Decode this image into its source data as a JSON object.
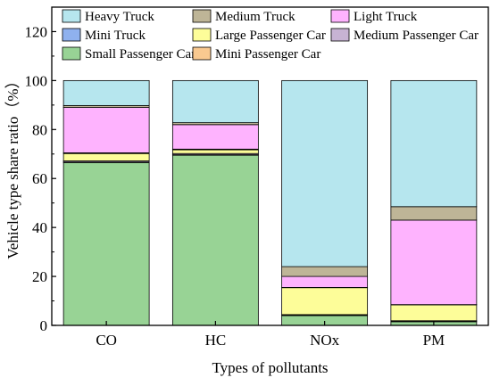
{
  "chart_data": {
    "type": "bar",
    "stacked": true,
    "categories": [
      "CO",
      "HC",
      "NOx",
      "PM"
    ],
    "xlabel": "Types of pollutants",
    "ylabel": "Vehicle type share ratio（%）",
    "ylim": [
      0,
      130
    ],
    "yticks": [
      0,
      20,
      40,
      60,
      80,
      100,
      120
    ],
    "grid": false,
    "legend_position": "top",
    "stack_order": [
      "Small Passenger Car",
      "Mini Passenger Car",
      "Medium Passenger Car",
      "Large Passenger Car",
      "Mini Truck",
      "Light Truck",
      "Medium Truck",
      "Heavy Truck"
    ],
    "legend_order": [
      "Heavy Truck",
      "Medium Truck",
      "Light Truck",
      "Mini Truck",
      "Large Passenger Car",
      "Medium Passenger Car",
      "Small Passenger Car",
      "Mini Passenger Car"
    ],
    "series": [
      {
        "name": "Small Passenger Car",
        "color": "#98d395",
        "values": [
          66.5,
          69.5,
          4.0,
          1.5
        ]
      },
      {
        "name": "Mini Passenger Car",
        "color": "#f9c990",
        "values": [
          0.2,
          0.2,
          0.1,
          0.1
        ]
      },
      {
        "name": "Medium Passenger Car",
        "color": "#c7b3d3",
        "values": [
          0.5,
          0.5,
          0.3,
          0.3
        ]
      },
      {
        "name": "Large Passenger Car",
        "color": "#fdfd99",
        "values": [
          3.0,
          1.5,
          11.0,
          6.5
        ]
      },
      {
        "name": "Mini Truck",
        "color": "#8fb1ee",
        "values": [
          0.3,
          0.3,
          0.1,
          0.1
        ]
      },
      {
        "name": "Light Truck",
        "color": "#feb3fe",
        "values": [
          18.5,
          10.0,
          4.5,
          34.5
        ]
      },
      {
        "name": "Medium Truck",
        "color": "#beb597",
        "values": [
          0.8,
          0.8,
          4.0,
          5.5
        ]
      },
      {
        "name": "Heavy Truck",
        "color": "#b6e6ee",
        "values": [
          10.2,
          17.2,
          76.0,
          51.5
        ]
      }
    ]
  }
}
